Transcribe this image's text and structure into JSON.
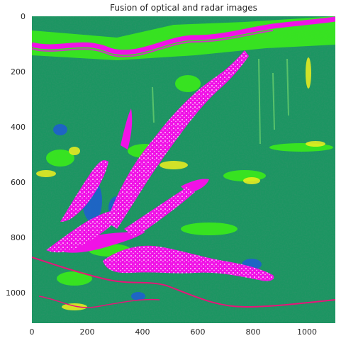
{
  "title": "Fusion of optical and radar images",
  "image": {
    "description_colors": {
      "forest_green": "#1e7a3a",
      "teal": "#2aa38c",
      "bright_green": "#3cf016",
      "magenta": "#f012e6",
      "blue": "#1e5adc",
      "yellow": "#f0f01e",
      "white": "#ffffff"
    }
  },
  "axes": {
    "x_ticks": [
      "0",
      "200",
      "400",
      "600",
      "800",
      "1000"
    ],
    "y_ticks": [
      "0",
      "200",
      "400",
      "600",
      "800",
      "1000"
    ],
    "x_range": [
      0,
      1100
    ],
    "y_range": [
      0,
      1110
    ]
  }
}
